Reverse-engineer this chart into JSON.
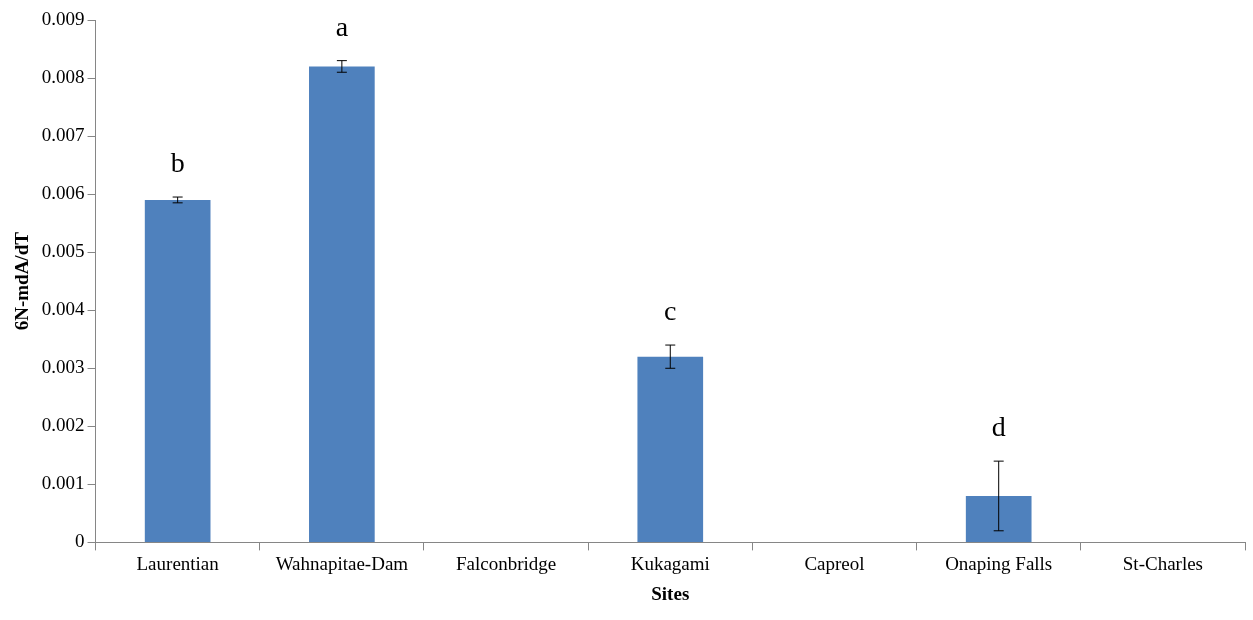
{
  "chart_data": {
    "type": "bar",
    "xlabel": "Sites",
    "ylabel": "6N-mdA/dT",
    "categories": [
      "Laurentian",
      "Wahnapitae-Dam",
      "Falconbridge",
      "Kukagami",
      "Capreol",
      "Onaping Falls",
      "St-Charles"
    ],
    "values": [
      0.0059,
      0.0082,
      0,
      0.0032,
      0,
      0.0008,
      0
    ],
    "errors": [
      5e-05,
      0.0001,
      null,
      0.0002,
      null,
      0.0006,
      null
    ],
    "color": "#4f81bd",
    "ylim": [
      0,
      0.009
    ],
    "yticks": [
      0,
      0.001,
      0.002,
      0.003,
      0.004,
      0.005,
      0.006,
      0.007,
      0.008,
      0.009
    ],
    "grid": false,
    "legend": false,
    "annotations": [
      {
        "text": "b",
        "x": "Laurentian",
        "y": 0.0059
      },
      {
        "text": "a",
        "x": "Wahnapitae-Dam",
        "y": 0.0082
      },
      {
        "text": "c",
        "x": "Kukagami",
        "y": 0.0032
      },
      {
        "text": "d",
        "x": "Onaping Falls",
        "y": 0.0008
      }
    ]
  }
}
